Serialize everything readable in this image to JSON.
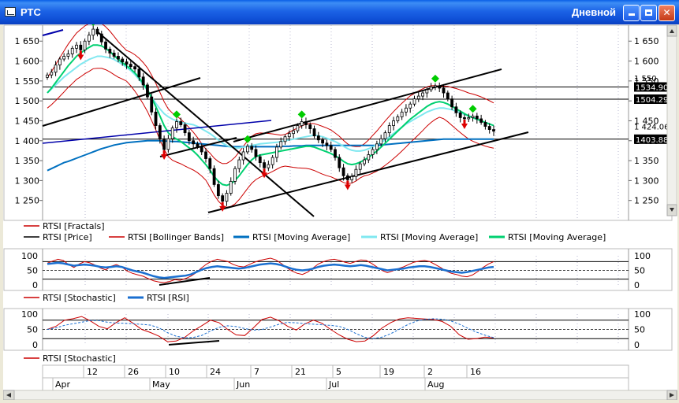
{
  "window": {
    "title": "РТС",
    "period": "Дневной",
    "buttons": [
      "minimize",
      "maximize",
      "close"
    ]
  },
  "colors": {
    "price": "#000000",
    "fractal_up": "#00cc00",
    "fractal_down": "#dd0000",
    "bollinger": "#cc0000",
    "ma_blue": "#0070c0",
    "ma_cyan": "#80e8f0",
    "ma_green": "#00d070",
    "rsi": "#1a6fd0",
    "stochastic": "#cc0000",
    "trend_blue": "#0000aa"
  },
  "legend_main": [
    {
      "label": "RTSI [Fractals]",
      "color": "#cc0000"
    },
    {
      "label": "RTSI [Price]",
      "color": "#000000"
    },
    {
      "label": "RTSI [Bollinger Bands]",
      "color": "#cc0000"
    },
    {
      "label": "RTSI [Moving Average]",
      "color": "#0070c0"
    },
    {
      "label": "RTSI [Moving Average]",
      "color": "#80e8f0"
    },
    {
      "label": "RTSI [Moving Average]",
      "color": "#00d070"
    }
  ],
  "legend_osc1": [
    {
      "label": "RTSI [Stochastic]",
      "color": "#cc0000"
    },
    {
      "label": "RTSI [RSI]",
      "color": "#1a6fd0"
    }
  ],
  "legend_osc2": [
    {
      "label": "RTSI [Stochastic]",
      "color": "#cc0000"
    }
  ],
  "chart_data": [
    {
      "type": "candlestick",
      "ylim": [
        1200,
        1690
      ],
      "yticks": [
        "1 650",
        "1 600",
        "1 550",
        "1 500",
        "1 450",
        "1 400",
        "1 350",
        "1 300",
        "1 250"
      ],
      "ytick_values": [
        1650,
        1600,
        1550,
        1500,
        1450,
        1400,
        1350,
        1300,
        1250
      ],
      "x_day_labels": [
        "12",
        "26",
        "10",
        "24",
        "7",
        "21",
        "5",
        "19",
        "2",
        "16"
      ],
      "x_month_labels": [
        "Apr",
        "May",
        "Jun",
        "Jul",
        "Aug"
      ],
      "horizontal_levels": [
        {
          "value": 1534.9,
          "label": "1534.90"
        },
        {
          "value": 1504.29,
          "label": "1504.29"
        },
        {
          "value": 1403.88,
          "label": "1403.88"
        }
      ],
      "last_price_label": "1 424.06",
      "upper_partial_label": "1 550",
      "close": [
        1565,
        1572,
        1590,
        1605,
        1612,
        1618,
        1632,
        1640,
        1628,
        1650,
        1665,
        1680,
        1668,
        1648,
        1630,
        1620,
        1612,
        1605,
        1598,
        1592,
        1586,
        1580,
        1560,
        1540,
        1510,
        1472,
        1438,
        1405,
        1378,
        1405,
        1432,
        1448,
        1440,
        1420,
        1400,
        1392,
        1385,
        1372,
        1355,
        1330,
        1290,
        1262,
        1248,
        1268,
        1298,
        1330,
        1352,
        1372,
        1386,
        1378,
        1360,
        1345,
        1332,
        1340,
        1358,
        1384,
        1398,
        1410,
        1418,
        1425,
        1438,
        1448,
        1440,
        1430,
        1412,
        1402,
        1394,
        1388,
        1378,
        1358,
        1332,
        1312,
        1302,
        1310,
        1328,
        1342,
        1352,
        1365,
        1378,
        1392,
        1405,
        1420,
        1438,
        1450,
        1460,
        1472,
        1482,
        1492,
        1505,
        1512,
        1520,
        1528,
        1535,
        1538,
        1532,
        1520,
        1505,
        1485,
        1470,
        1458,
        1455,
        1458,
        1462,
        1455,
        1446,
        1436,
        1428,
        1424
      ],
      "series": [
        {
          "name": "RTSI [Moving Average]",
          "color": "blue",
          "values": [
            1325,
            1330,
            1335,
            1340,
            1345,
            1348,
            1352,
            1356,
            1360,
            1364,
            1368,
            1372,
            1376,
            1380,
            1383,
            1386,
            1389,
            1391,
            1393,
            1395,
            1396,
            1397,
            1398,
            1399,
            1400,
            1400,
            1400,
            1400,
            1399,
            1399,
            1398,
            1398,
            1397,
            1396,
            1395,
            1394,
            1393,
            1392,
            1391,
            1390,
            1389,
            1388,
            1387,
            1386,
            1385,
            1385,
            1385,
            1385,
            1385,
            1385,
            1385,
            1385,
            1385,
            1385,
            1385,
            1385,
            1386,
            1386,
            1386,
            1387,
            1387,
            1387,
            1388,
            1388,
            1388,
            1388,
            1388,
            1388,
            1388,
            1388,
            1388,
            1388,
            1388,
            1388,
            1388,
            1388,
            1388,
            1388,
            1388,
            1388,
            1389,
            1390,
            1391,
            1392,
            1393,
            1394,
            1395,
            1396,
            1397,
            1398,
            1399,
            1400,
            1401,
            1402,
            1403,
            1404,
            1404,
            1404,
            1404,
            1404,
            1404,
            1404,
            1404,
            1404,
            1404,
            1404,
            1404,
            1404
          ]
        },
        {
          "name": "RTSI [Moving Average]",
          "color": "cyan",
          "values": [
            1520,
            1530,
            1540,
            1550,
            1560,
            1568,
            1576,
            1584,
            1592,
            1598,
            1604,
            1608,
            1612,
            1612,
            1610,
            1608,
            1604,
            1598,
            1592,
            1584,
            1576,
            1566,
            1554,
            1540,
            1526,
            1510,
            1494,
            1480,
            1468,
            1460,
            1454,
            1450,
            1446,
            1444,
            1442,
            1440,
            1436,
            1430,
            1424,
            1418,
            1410,
            1402,
            1394,
            1388,
            1384,
            1382,
            1382,
            1384,
            1386,
            1388,
            1390,
            1392,
            1393,
            1394,
            1395,
            1396,
            1398,
            1400,
            1402,
            1404,
            1406,
            1408,
            1410,
            1412,
            1414,
            1412,
            1410,
            1406,
            1402,
            1398,
            1392,
            1386,
            1380,
            1376,
            1374,
            1374,
            1376,
            1380,
            1384,
            1390,
            1396,
            1402,
            1410,
            1418,
            1426,
            1434,
            1442,
            1448,
            1454,
            1460,
            1466,
            1472,
            1476,
            1480,
            1482,
            1482,
            1480,
            1478,
            1474,
            1470,
            1466,
            1462,
            1458,
            1454,
            1450,
            1446,
            1442,
            1438
          ]
        },
        {
          "name": "RTSI [Moving Average]",
          "color": "green",
          "values": [
            1520,
            1532,
            1546,
            1560,
            1574,
            1588,
            1600,
            1612,
            1620,
            1628,
            1634,
            1640,
            1640,
            1638,
            1632,
            1624,
            1614,
            1604,
            1596,
            1588,
            1580,
            1570,
            1558,
            1544,
            1528,
            1508,
            1486,
            1462,
            1438,
            1420,
            1410,
            1404,
            1398,
            1390,
            1382,
            1374,
            1364,
            1352,
            1340,
            1326,
            1310,
            1298,
            1290,
            1288,
            1292,
            1300,
            1312,
            1326,
            1340,
            1352,
            1360,
            1364,
            1366,
            1368,
            1370,
            1372,
            1374,
            1376,
            1378,
            1380,
            1382,
            1384,
            1386,
            1386,
            1384,
            1380,
            1376,
            1372,
            1368,
            1362,
            1356,
            1348,
            1342,
            1340,
            1342,
            1346,
            1352,
            1358,
            1366,
            1374,
            1384,
            1394,
            1404,
            1414,
            1424,
            1434,
            1444,
            1454,
            1462,
            1470,
            1478,
            1486,
            1492,
            1496,
            1498,
            1496,
            1492,
            1486,
            1480,
            1474,
            1468,
            1462,
            1458,
            1454,
            1450,
            1446,
            1442,
            1438
          ]
        }
      ]
    },
    {
      "type": "line",
      "ylim": [
        0,
        100
      ],
      "yticks": [
        "100",
        "50",
        "0"
      ],
      "levels": [
        80,
        50,
        20
      ],
      "series": [
        {
          "name": "RTSI [Stochastic]",
          "values": [
            75,
            82,
            88,
            84,
            70,
            60,
            72,
            80,
            76,
            68,
            58,
            52,
            64,
            70,
            62,
            48,
            40,
            35,
            30,
            22,
            14,
            10,
            8,
            12,
            18,
            16,
            22,
            30,
            42,
            58,
            72,
            82,
            88,
            84,
            80,
            70,
            64,
            62,
            70,
            78,
            84,
            88,
            92,
            86,
            74,
            60,
            48,
            40,
            36,
            44,
            58,
            72,
            80,
            86,
            88,
            84,
            78,
            74,
            80,
            86,
            84,
            74,
            62,
            50,
            42,
            48,
            56,
            62,
            70,
            78,
            82,
            84,
            80,
            70,
            60,
            48,
            40,
            36,
            30,
            28,
            34,
            46,
            60,
            72,
            80
          ]
        },
        {
          "name": "RTSI [RSI]",
          "values": [
            72,
            74,
            76,
            74,
            70,
            66,
            68,
            70,
            68,
            66,
            62,
            60,
            62,
            64,
            62,
            56,
            50,
            46,
            42,
            36,
            30,
            26,
            24,
            26,
            28,
            30,
            32,
            36,
            44,
            52,
            58,
            62,
            64,
            62,
            60,
            58,
            56,
            58,
            62,
            66,
            70,
            72,
            74,
            72,
            68,
            62,
            56,
            52,
            50,
            52,
            56,
            62,
            66,
            68,
            70,
            68,
            66,
            64,
            66,
            68,
            66,
            62,
            58,
            54,
            50,
            52,
            54,
            56,
            60,
            62,
            64,
            64,
            62,
            58,
            54,
            50,
            46,
            44,
            42,
            44,
            48,
            52,
            56,
            60,
            62
          ]
        }
      ]
    },
    {
      "type": "line",
      "ylim": [
        0,
        100
      ],
      "yticks": [
        "100",
        "50",
        "0"
      ],
      "levels": [
        80,
        50,
        20
      ],
      "series": [
        {
          "name": "RTSI [Stochastic]",
          "values": [
            50,
            60,
            80,
            85,
            92,
            78,
            60,
            52,
            72,
            88,
            70,
            50,
            40,
            28,
            10,
            12,
            24,
            45,
            62,
            80,
            72,
            50,
            32,
            30,
            55,
            82,
            90,
            78,
            60,
            48,
            68,
            80,
            70,
            50,
            32,
            18,
            10,
            12,
            30,
            55,
            72,
            84,
            88,
            86,
            84,
            82,
            76,
            60,
            32,
            18,
            20,
            25,
            22
          ]
        }
      ]
    }
  ]
}
